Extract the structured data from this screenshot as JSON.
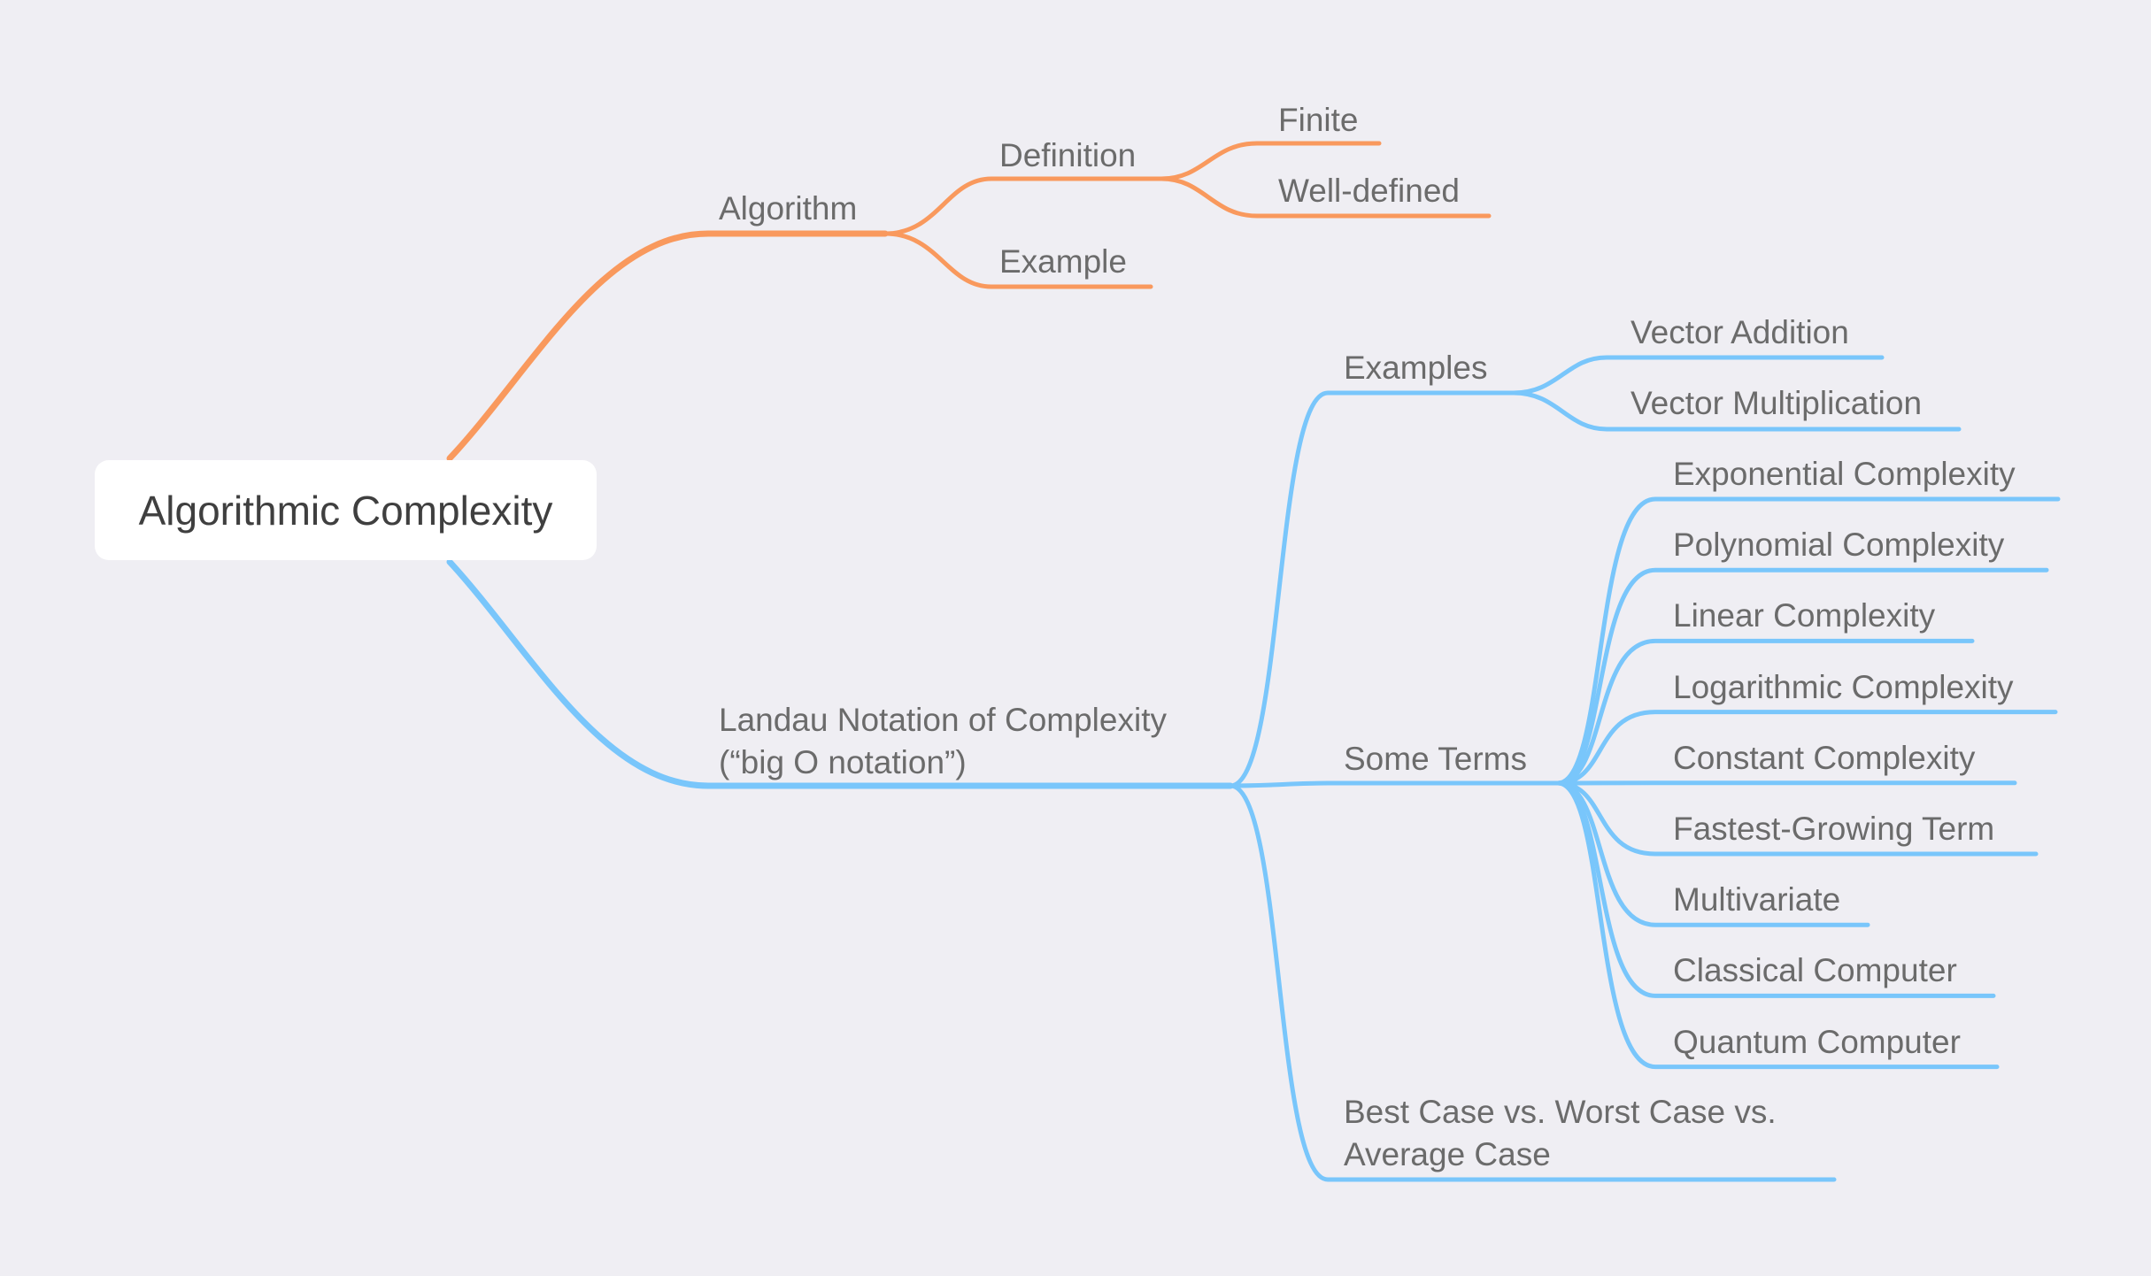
{
  "root": {
    "label": "Algorithmic Complexity"
  },
  "colors": {
    "algorithm_branch": "#f9995d",
    "landau_branch": "#79c6fb",
    "background": "#efeef3",
    "root_fill": "#ffffff"
  },
  "algorithm": {
    "label": "Algorithm",
    "definition": {
      "label": "Definition",
      "children": [
        "Finite",
        "Well-defined"
      ]
    },
    "example": {
      "label": "Example"
    }
  },
  "landau": {
    "label_line1": "Landau Notation of Complexity",
    "label_line2": "(“big O notation”)",
    "examples": {
      "label": "Examples",
      "children": [
        "Vector Addition",
        "Vector Multiplication"
      ]
    },
    "terms": {
      "label": "Some Terms",
      "children": [
        "Exponential Complexity",
        "Polynomial Complexity",
        "Linear Complexity",
        "Logarithmic Complexity",
        "Constant Complexity",
        "Fastest-Growing Term",
        "Multivariate",
        "Classical Computer",
        "Quantum Computer"
      ]
    },
    "cases": {
      "label_line1": "Best Case vs. Worst Case vs.",
      "label_line2": "Average Case"
    }
  }
}
